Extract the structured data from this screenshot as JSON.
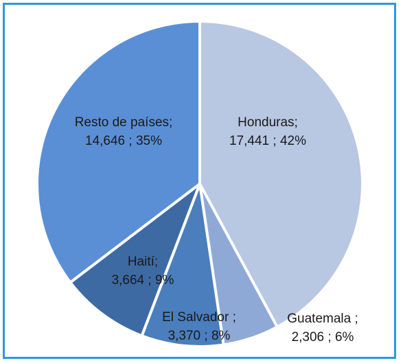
{
  "chart_data": {
    "type": "pie",
    "title": "",
    "start_angle_deg": 0,
    "direction": "clockwise",
    "slices": [
      {
        "label": "Honduras;",
        "value_text": "17,441 ; 42%",
        "value": 17441,
        "color": "#b8c7e2"
      },
      {
        "label": "Guatemala ;",
        "value_text": "2,306 ; 6%",
        "value": 2306,
        "color": "#8fa9d6"
      },
      {
        "label": "El Salvador ;",
        "value_text": "3,370 ; 8%",
        "value": 3370,
        "color": "#4a7ebd"
      },
      {
        "label": "Haití;",
        "value_text": "3,664 ; 9%",
        "value": 3664,
        "color": "#3d6aa3"
      },
      {
        "label": "Resto de países;",
        "value_text": "14,646 ; 35%",
        "value": 14646,
        "color": "#5a8fd6"
      }
    ],
    "slice_border_color": "#ffffff",
    "frame_color": "#2f97d8"
  }
}
